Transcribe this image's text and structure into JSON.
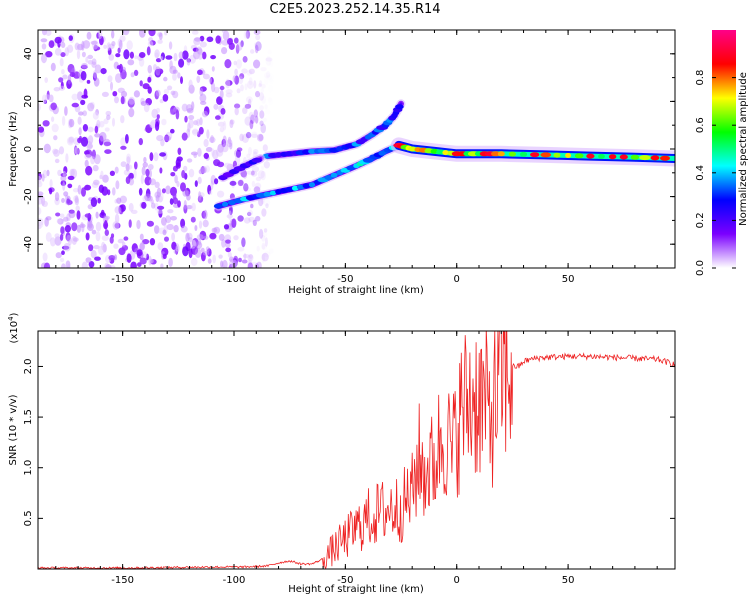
{
  "title": "C2E5.2023.252.14.35.R14",
  "chart_data": [
    {
      "type": "heatmap",
      "xlabel": "Height of straight line (km)",
      "ylabel": "Frequency (Hz)",
      "xlim": [
        -188,
        98
      ],
      "ylim": [
        -50,
        50
      ],
      "xticks": [
        -150,
        -100,
        -50,
        0,
        50
      ],
      "yticks": [
        -40,
        -20,
        0,
        20,
        40
      ],
      "colorbar": {
        "label": "Normalized spectral amplitude",
        "range": [
          0.0,
          1.0
        ],
        "ticks": [
          "0.0",
          "0.2",
          "0.4",
          "0.6",
          "0.8"
        ],
        "tick_values": [
          0.0,
          0.2,
          0.4,
          0.6,
          0.8
        ],
        "colormap": [
          "#ffffff",
          "#7b00ff",
          "#0000ff",
          "#00ffff",
          "#00ff00",
          "#ffff00",
          "#ff0000",
          "#ff0088"
        ]
      },
      "noise_region": {
        "x_from": -188,
        "x_to": -83,
        "level": 0.12
      },
      "tracks": [
        {
          "name": "",
          "points": [
            [
              -85,
              -3
            ],
            [
              -75,
              -2
            ],
            [
              -65,
              -1
            ],
            [
              -55,
              -0.5
            ],
            [
              -45,
              2
            ],
            [
              -38,
              6
            ],
            [
              -32,
              10
            ],
            [
              -28,
              14
            ],
            [
              -25,
              19
            ]
          ],
          "amplitude": 0.35
        },
        {
          "name": "",
          "points": [
            [
              -105,
              -12
            ],
            [
              -95,
              -7
            ],
            [
              -88,
              -4
            ]
          ],
          "amplitude": 0.25
        },
        {
          "name": "",
          "points": [
            [
              -107,
              -24
            ],
            [
              -95,
              -21
            ],
            [
              -85,
              -19
            ],
            [
              -75,
              -17
            ],
            [
              -65,
              -15
            ],
            [
              -55,
              -11
            ],
            [
              -45,
              -7
            ],
            [
              -38,
              -4
            ],
            [
              -32,
              -1
            ],
            [
              -27,
              1
            ]
          ],
          "amplitude": 0.45
        },
        {
          "name": "",
          "points": [
            [
              -26,
              1.5
            ],
            [
              -20,
              0
            ],
            [
              -10,
              -1
            ],
            [
              0,
              -2
            ],
            [
              10,
              -2
            ],
            [
              20,
              -2
            ],
            [
              40,
              -2.5
            ],
            [
              60,
              -3
            ],
            [
              80,
              -3.5
            ],
            [
              98,
              -4
            ]
          ],
          "amplitude": 0.85
        }
      ]
    },
    {
      "type": "line",
      "xlabel": "Height of straight line (km)",
      "ylabel": "SNR (10 * v/v)",
      "scale_label": "(x10",
      "scale_exp": "4",
      "scale_close": ")",
      "xlim": [
        -188,
        98
      ],
      "ylim": [
        0,
        2.35
      ],
      "xticks": [
        -150,
        -100,
        -50,
        0,
        50
      ],
      "yticks": [
        0.5,
        1.0,
        1.5,
        2.0
      ],
      "ytick_labels": [
        "0.5",
        "1.0",
        "1.5",
        "2.0"
      ],
      "color": "#ee2222",
      "series": [
        {
          "name": "",
          "x": [
            -188,
            -170,
            -150,
            -130,
            -110,
            -95,
            -85,
            -80,
            -75,
            -70,
            -65,
            -60,
            -55,
            -50,
            -45,
            -40,
            -35,
            -30,
            -25,
            -20,
            -17,
            -15,
            -12,
            -10,
            -7,
            -5,
            -2,
            0,
            3,
            5,
            8,
            10,
            13,
            15,
            18,
            20,
            23,
            25,
            28,
            30,
            35,
            40,
            50,
            60,
            70,
            80,
            90,
            98
          ],
          "y": [
            0.01,
            0.01,
            0.01,
            0.015,
            0.02,
            0.02,
            0.03,
            0.06,
            0.08,
            0.05,
            0.05,
            0.1,
            0.2,
            0.3,
            0.4,
            0.5,
            0.55,
            0.6,
            0.6,
            0.75,
            1.1,
            0.95,
            1.0,
            1.05,
            1.3,
            1.35,
            1.1,
            1.4,
            1.6,
            1.65,
            1.7,
            1.7,
            1.6,
            1.5,
            1.7,
            1.9,
            1.95,
            2.0,
            2.0,
            2.05,
            2.08,
            2.09,
            2.1,
            2.1,
            2.09,
            2.08,
            2.07,
            2.02
          ]
        }
      ]
    }
  ]
}
